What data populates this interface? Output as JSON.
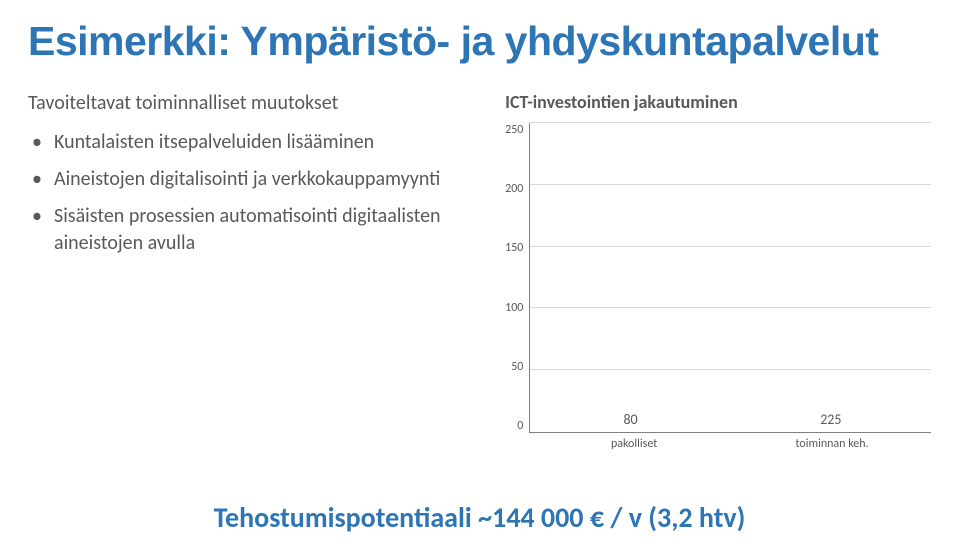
{
  "title": {
    "text": "Esimerkki: Ympäristö- ja yhdyskuntapalvelut",
    "color": "#2e75b6",
    "fontsize": 41,
    "fontweight": 700
  },
  "left": {
    "heading": "Tavoiteltavat toiminnalliset muutokset",
    "bullets": [
      "Kuntalaisten itsepalveluiden lisääminen",
      "Aineistojen digitalisointi ja verkkokauppamyynti",
      "Sisäisten prosessien automatisointi digitaalisten aineistojen avulla"
    ],
    "text_color": "#595959",
    "fontsize": 20
  },
  "chart": {
    "title": "ICT-investointien jakautuminen",
    "title_color": "#595959",
    "title_fontsize": 18,
    "title_fontweight": 700,
    "type": "bar",
    "categories": [
      "pakolliset",
      "toiminnan keh."
    ],
    "values": [
      80,
      225
    ],
    "value_labels": [
      "80",
      "225"
    ],
    "bar_colors": [
      "#2e9ca6",
      "#2e9ca6"
    ],
    "ylim": [
      0,
      250
    ],
    "ytick_step": 50,
    "yticks": [
      0,
      50,
      100,
      150,
      200,
      250
    ],
    "grid_color": "#d9d9d9",
    "axis_color": "#808080",
    "background_color": "#ffffff",
    "label_fontsize": 12,
    "value_label_fontsize": 14,
    "value_label_color": "#595959",
    "bar_width": 0.82
  },
  "footer": {
    "text": "Tehostumispotentiaali ~144 000 € / v (3,2 htv)",
    "color": "#2e75b6",
    "fontsize": 28,
    "fontweight": 700
  }
}
